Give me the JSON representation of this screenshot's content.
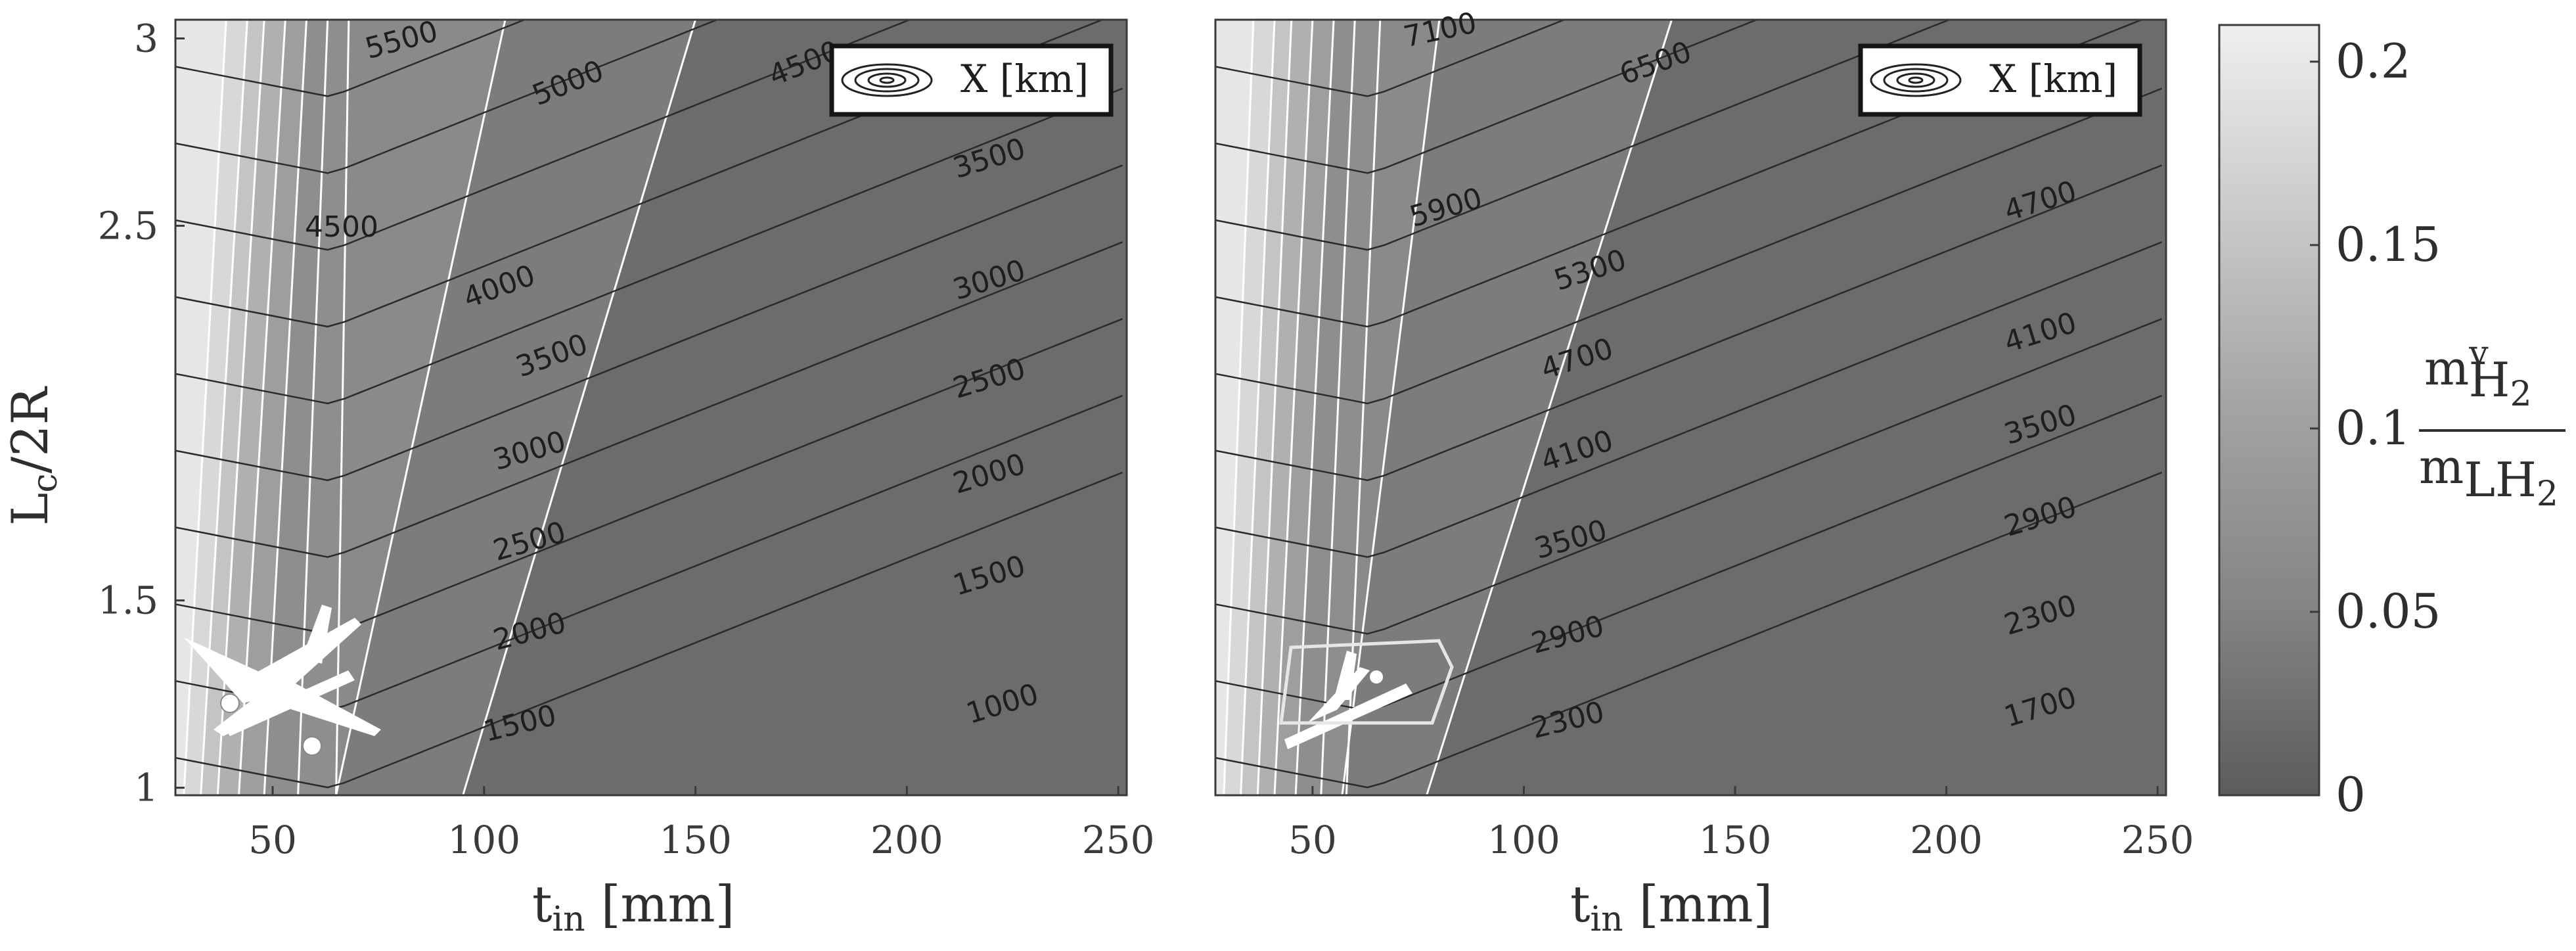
{
  "colors": {
    "white_isoline": "#ffffff",
    "black_isoline": "#2a2a2a",
    "gray_light": "#ececec",
    "gray_dark": "#6a6a6a",
    "colorbar_top": "#efefef",
    "colorbar_bottom": "#5c5c5c"
  },
  "colorbar": {
    "ticks": [
      "0.2",
      "0.15",
      "0.1",
      "0.05",
      "0"
    ],
    "tick_values": [
      0.2,
      0.15,
      0.1,
      0.05,
      0
    ],
    "range": [
      0,
      0.21
    ],
    "label_numerator": "m",
    "label_numerator_sup": "v",
    "label_numerator_sub": "H",
    "label_numerator_sub2": "2",
    "label_denominator": "m",
    "label_denominator_sub": "LH",
    "label_denominator_sub2": "2"
  },
  "chart_data": [
    {
      "type": "contour",
      "panel": "left",
      "xlabel": "t",
      "xlabel_sub": "in",
      "xlabel_unit": " [mm]",
      "ylabel": "L",
      "ylabel_sub": "c",
      "ylabel_rest": "/2R",
      "xlim": [
        27,
        252
      ],
      "ylim": [
        0.98,
        3.05
      ],
      "xticks": [
        50,
        100,
        150,
        200,
        250
      ],
      "ytick_labels": [
        "1",
        "1.5",
        "2.5",
        "3"
      ],
      "grid": false,
      "legend": {
        "position": "top-right",
        "text": "X [km]",
        "icon": "concentric-ellipses-icon"
      },
      "icon": "airplane-icon",
      "contour_lines": [
        {
          "label": "1000",
          "slope": 0.004,
          "rows": [
            {
              "x": 27,
              "y": 1.0
            },
            {
              "x": 83,
              "y": 1.0
            },
            {
              "x": 252,
              "y": 1.45
            }
          ],
          "label_at": 215,
          "label_rot": -17
        },
        {
          "label": "1500",
          "slope": 0.0025,
          "rows": [
            {
              "x": 27,
              "y": 1.01
            },
            {
              "x": 64,
              "y": 1.03
            },
            {
              "x": 252,
              "y": 1.58
            }
          ],
          "label_at": 91,
          "label_rot": -14
        },
        {
          "label": "1500",
          "slope": 0.0,
          "rows": [
            {
              "x": 27,
              "y": 1.01
            },
            {
              "x": 64,
              "y": 1.03
            },
            {
              "x": 252,
              "y": 1.79
            }
          ],
          "label_at": 220,
          "label_rot": -17
        },
        {
          "label": "2000",
          "rows": [
            {
              "x": 27,
              "y": 1.22
            },
            {
              "x": 64,
              "y": 1.16
            },
            {
              "x": 252,
              "y": 1.97
            }
          ],
          "label_at": 95,
          "label_rot": -15
        },
        {
          "label": "2000",
          "rows": [
            {
              "x": 27,
              "y": 1.22
            },
            {
              "x": 64,
              "y": 1.16
            },
            {
              "x": 252,
              "y": 1.97
            }
          ],
          "label_at": 220,
          "label_rot": -17
        },
        {
          "label": "2500",
          "rows": [
            {
              "x": 27,
              "y": 1.42
            },
            {
              "x": 64,
              "y": 1.38
            },
            {
              "x": 252,
              "y": 2.2
            }
          ],
          "label_at": 95,
          "label_rot": -16
        },
        {
          "label": "2500",
          "rows": [
            {
              "x": 27,
              "y": 1.42
            },
            {
              "x": 64,
              "y": 1.38
            },
            {
              "x": 252,
              "y": 2.2
            }
          ],
          "label_at": 220,
          "label_rot": -17
        },
        {
          "label": "3000",
          "rows": [
            {
              "x": 27,
              "y": 1.68
            },
            {
              "x": 64,
              "y": 1.6
            },
            {
              "x": 252,
              "y": 2.45
            }
          ],
          "label_at": 95,
          "label_rot": -16
        },
        {
          "label": "3000",
          "rows": [
            {
              "x": 27,
              "y": 1.68
            },
            {
              "x": 64,
              "y": 1.6
            },
            {
              "x": 252,
              "y": 2.45
            }
          ],
          "label_at": 220,
          "label_rot": -17
        },
        {
          "label": "3500",
          "rows": [
            {
              "x": 27,
              "y": 1.95
            },
            {
              "x": 64,
              "y": 1.85
            },
            {
              "x": 252,
              "y": 2.72
            }
          ],
          "label_at": 105,
          "label_rot": -20
        },
        {
          "label": "3500",
          "rows": [
            {
              "x": 27,
              "y": 1.95
            },
            {
              "x": 64,
              "y": 1.85
            },
            {
              "x": 252,
              "y": 2.72
            }
          ],
          "label_at": 220,
          "label_rot": -17
        },
        {
          "label": "4000",
          "rows": [
            {
              "x": 27,
              "y": 2.25
            },
            {
              "x": 64,
              "y": 2.1
            },
            {
              "x": 252,
              "y": 3.05
            }
          ],
          "label_at": 92,
          "label_rot": -20
        },
        {
          "label": "4500",
          "rows": [
            {
              "x": 27,
              "y": 2.5
            },
            {
              "x": 64,
              "y": 2.35
            },
            {
              "x": 188,
              "y": 3.05
            }
          ],
          "label_at": 178,
          "label_rot": -22
        },
        {
          "label": "4500",
          "rows": [
            {
              "x": 27,
              "y": 2.5
            },
            {
              "x": 64,
              "y": 2.35
            },
            {
              "x": 188,
              "y": 3.05
            }
          ],
          "label_at": 55,
          "label_rot": 0
        },
        {
          "label": "5000",
          "rows": [
            {
              "x": 27,
              "y": 2.75
            },
            {
              "x": 64,
              "y": 2.6
            },
            {
              "x": 140,
              "y": 3.05
            }
          ],
          "label_at": 110,
          "label_rot": -22
        },
        {
          "label": "5500",
          "rows": [
            {
              "x": 27,
              "y": 3.05
            },
            {
              "x": 64,
              "y": 2.96
            },
            {
              "x": 88,
              "y": 3.05
            }
          ],
          "label_at": 75,
          "label_rot": -15
        }
      ],
      "white_isolines": [
        {
          "x_bottom": 29,
          "x_top": 39
        },
        {
          "x_bottom": 33,
          "x_top": 44
        },
        {
          "x_bottom": 37,
          "x_top": 48
        },
        {
          "x_bottom": 42,
          "x_top": 53
        },
        {
          "x_bottom": 48,
          "x_top": 58
        },
        {
          "x_bottom": 56,
          "x_top": 63
        },
        {
          "x_bottom": 65,
          "x_top": 68
        }
      ],
      "regions": [
        {
          "value": 0.0,
          "from_x_bottom": 95,
          "from_x_top": 150
        },
        {
          "value": 0.03,
          "from_x_bottom": 65,
          "from_x_top": 105
        }
      ]
    },
    {
      "type": "contour",
      "panel": "right",
      "xlabel": "t",
      "xlabel_sub": "in",
      "xlabel_unit": " [mm]",
      "xlim": [
        27,
        252
      ],
      "ylim": [
        0.98,
        3.05
      ],
      "xticks": [
        50,
        100,
        150,
        200,
        250
      ],
      "grid": false,
      "legend": {
        "position": "top-right",
        "text": "X [km]",
        "icon": "concentric-ellipses-icon"
      },
      "icon": "airplane-icon",
      "contour_lines": [
        {
          "label": "1700",
          "label_at": 218,
          "label_rot": -17
        },
        {
          "label": "2300",
          "label_at": 95,
          "label_rot": -14
        },
        {
          "label": "2300",
          "label_at": 218,
          "label_rot": -17
        },
        {
          "label": "2900",
          "label_at": 100,
          "label_rot": -15
        },
        {
          "label": "2900",
          "label_at": 218,
          "label_rot": -17
        },
        {
          "label": "3500",
          "label_at": 100,
          "label_rot": -16
        },
        {
          "label": "3500",
          "label_at": 218,
          "label_rot": -17
        },
        {
          "label": "4100",
          "label_at": 105,
          "label_rot": -18
        },
        {
          "label": "4100",
          "label_at": 218,
          "label_rot": -17
        },
        {
          "label": "4700",
          "label_at": 105,
          "label_rot": -18
        },
        {
          "label": "4700",
          "label_at": 218,
          "label_rot": -17
        },
        {
          "label": "5300",
          "label_at": 110,
          "label_rot": -18
        },
        {
          "label": "5900",
          "label_at": 67,
          "label_rot": -16
        },
        {
          "label": "6500",
          "label_at": 132,
          "label_rot": -20
        },
        {
          "label": "7100",
          "label_at": 67,
          "label_rot": -12
        }
      ],
      "regions": [
        {
          "value": 0.0,
          "from_x_bottom": 77,
          "from_x_top": 135
        },
        {
          "value": 0.03,
          "from_x_bottom": 57,
          "from_x_top": 80
        }
      ]
    }
  ]
}
